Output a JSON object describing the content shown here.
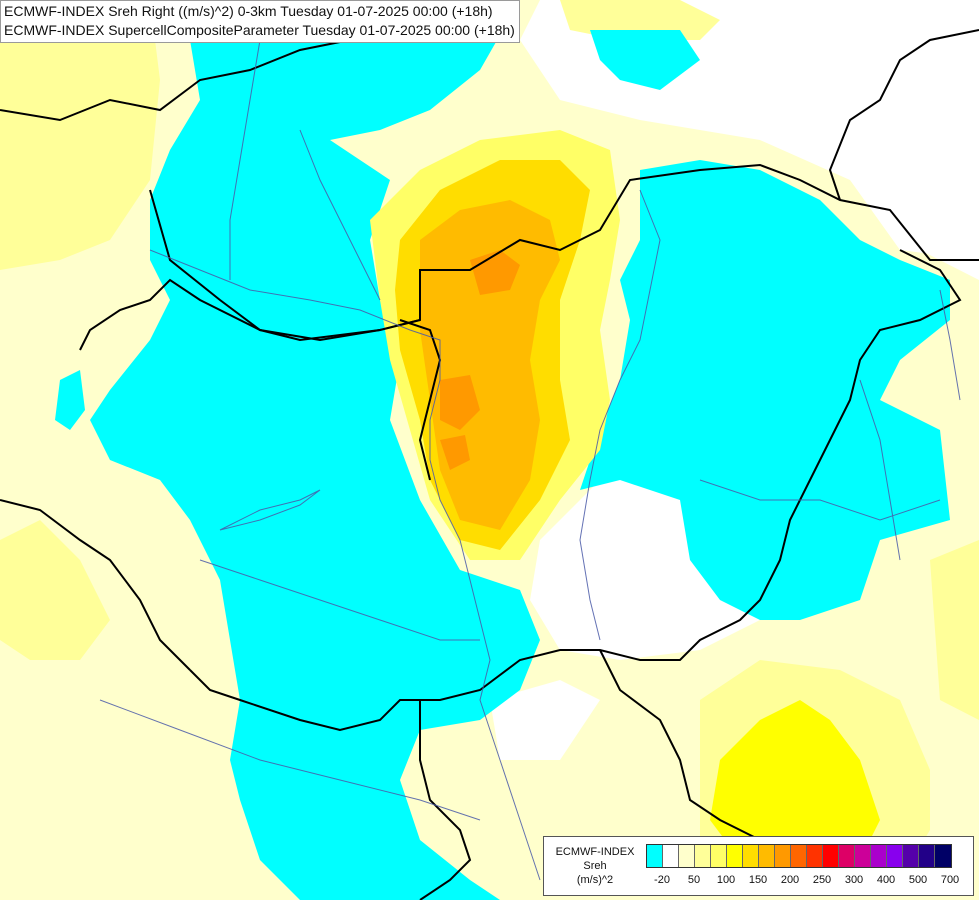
{
  "titles": {
    "line1": "ECMWF-INDEX Sreh Right ((m/s)^2) 0-3km Tuesday 01-07-2025 00:00 (+18h)",
    "line2": "ECMWF-INDEX SupercellCompositeParameter Tuesday 01-07-2025 00:00 (+18h)"
  },
  "legend": {
    "model": "ECMWF-INDEX",
    "parameter": "Sreh",
    "unit": "(m/s)^2",
    "ticks": [
      "-20",
      "50",
      "100",
      "150",
      "200",
      "250",
      "300",
      "400",
      "500",
      "700"
    ],
    "colors": [
      "#00ffff",
      "#ffffff",
      "#ffffcc",
      "#ffff99",
      "#ffff66",
      "#ffff00",
      "#ffdd00",
      "#ffbb00",
      "#ff9900",
      "#ff6600",
      "#ff3300",
      "#ff0000",
      "#dd0066",
      "#cc0099",
      "#aa00cc",
      "#8800ee",
      "#5500aa",
      "#220088",
      "#000066"
    ]
  },
  "map_colors": {
    "cyan": "#00ffff",
    "white": "#ffffff",
    "pale_yellow": "#ffffcc",
    "light_yellow": "#ffff99",
    "yellow": "#ffff66",
    "bright_yellow": "#ffff00",
    "gold": "#ffdd00",
    "orange": "#ffbb00",
    "dark_orange": "#ff9900",
    "border": "#000000",
    "river": "#4a5aa8"
  }
}
